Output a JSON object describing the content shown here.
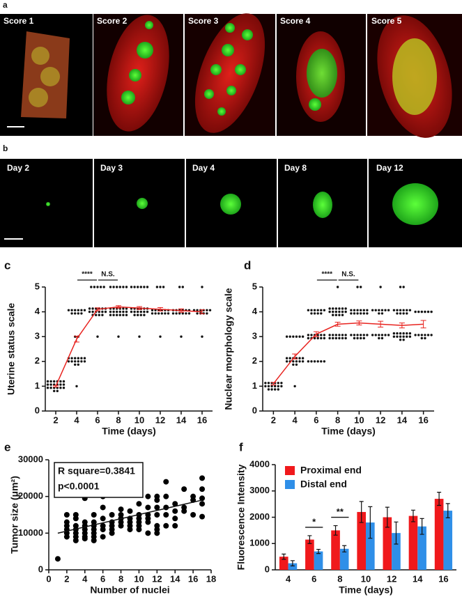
{
  "panel_a": {
    "letter": "a",
    "labels": [
      "Score 1",
      "Score 2",
      "Score 3",
      "Score 4",
      "Score 5"
    ]
  },
  "panel_b": {
    "letter": "b",
    "labels": [
      "Day 2",
      "Day 3",
      "Day 4",
      "Day 8",
      "Day 12"
    ]
  },
  "chart_data": [
    {
      "type": "dotplot",
      "letter": "c",
      "ylabel": "Uterine status scale",
      "xlabel": "Time (days)",
      "x": [
        2,
        4,
        6,
        8,
        10,
        12,
        14,
        16
      ],
      "xlim": [
        1,
        17
      ],
      "xticks": [
        2,
        4,
        6,
        8,
        10,
        12,
        14,
        16
      ],
      "ylim": [
        0,
        5
      ],
      "yticks": [
        0,
        1,
        2,
        3,
        4,
        5
      ],
      "dot_color": "#111111",
      "line_color": "#e8231f",
      "points": [
        [
          1,
          1,
          1,
          1,
          1,
          1,
          1,
          1,
          1,
          1,
          1,
          1,
          1,
          1,
          1,
          1,
          1,
          1,
          1,
          1
        ],
        [
          4,
          4,
          4,
          4,
          4,
          4,
          4,
          4,
          4,
          4,
          3,
          3,
          2,
          2,
          2,
          2,
          2,
          2,
          2,
          2,
          2,
          2,
          2,
          2,
          2,
          2,
          1
        ],
        [
          5,
          5,
          5,
          5,
          5,
          4,
          4,
          4,
          4,
          4,
          4,
          4,
          4,
          4,
          4,
          4,
          4,
          4,
          4,
          4,
          4,
          3
        ],
        [
          5,
          5,
          5,
          5,
          5,
          5,
          4,
          4,
          4,
          4,
          4,
          4,
          4,
          4,
          4,
          4,
          4,
          4,
          4,
          4,
          4,
          4,
          4,
          4,
          3
        ],
        [
          5,
          5,
          5,
          5,
          5,
          5,
          4,
          4,
          4,
          4,
          4,
          4,
          4,
          4,
          4,
          4,
          4,
          4,
          4,
          4,
          4,
          4,
          3
        ],
        [
          5,
          5,
          5,
          4,
          4,
          4,
          4,
          4,
          4,
          4,
          4,
          4,
          4,
          4,
          4,
          3
        ],
        [
          5,
          5,
          4,
          4,
          4,
          4,
          4,
          4,
          4,
          4,
          4,
          4,
          4,
          4,
          3
        ],
        [
          5,
          4,
          4,
          4,
          4,
          4,
          4,
          4,
          4,
          4,
          4,
          3
        ]
      ],
      "mean": [
        1.0,
        2.9,
        4.1,
        4.2,
        4.15,
        4.1,
        4.05,
        4.0
      ],
      "errors": [
        0.03,
        0.12,
        0.06,
        0.05,
        0.06,
        0.07,
        0.07,
        0.08
      ],
      "brackets": [
        {
          "label": "****",
          "x": [
            4,
            6
          ]
        },
        {
          "label": "N.S.",
          "x": [
            6,
            8
          ]
        }
      ]
    },
    {
      "type": "dotplot",
      "letter": "d",
      "ylabel": "Nuclear morphology scale",
      "xlabel": "Time (days)",
      "x": [
        2,
        4,
        6,
        8,
        10,
        12,
        14,
        16
      ],
      "xlim": [
        1,
        17
      ],
      "xticks": [
        2,
        4,
        6,
        8,
        10,
        12,
        14,
        16
      ],
      "ylim": [
        0,
        5
      ],
      "yticks": [
        0,
        1,
        2,
        3,
        4,
        5
      ],
      "dot_color": "#111111",
      "line_color": "#e8231f",
      "points": [
        [
          1,
          1,
          1,
          1,
          1,
          1,
          1,
          1,
          1,
          1,
          1,
          1,
          1,
          1,
          1,
          1
        ],
        [
          3,
          3,
          3,
          3,
          3,
          3,
          2,
          2,
          2,
          2,
          2,
          2,
          2,
          2,
          2,
          2,
          2,
          2,
          2,
          2,
          1
        ],
        [
          4,
          4,
          4,
          4,
          4,
          4,
          4,
          4,
          4,
          4,
          3,
          3,
          3,
          3,
          3,
          3,
          3,
          3,
          3,
          3,
          3,
          3,
          2,
          2,
          2,
          2,
          2,
          2
        ],
        [
          5,
          4,
          4,
          4,
          4,
          4,
          4,
          4,
          4,
          4,
          4,
          4,
          4,
          4,
          4,
          4,
          4,
          3,
          3,
          3,
          3,
          3,
          3,
          3,
          3,
          3,
          3,
          3,
          3
        ],
        [
          5,
          5,
          4,
          4,
          4,
          4,
          4,
          4,
          4,
          4,
          4,
          4,
          4,
          4,
          3,
          3,
          3,
          3,
          3,
          3,
          3,
          3,
          3,
          3
        ],
        [
          5,
          4,
          4,
          4,
          4,
          4,
          4,
          4,
          4,
          3,
          3,
          3,
          3,
          3,
          3,
          3,
          3
        ],
        [
          5,
          5,
          4,
          4,
          4,
          4,
          4,
          4,
          4,
          4,
          4,
          4,
          3,
          3,
          3,
          3,
          3,
          3,
          3,
          3,
          3,
          3,
          3,
          3,
          3,
          3
        ],
        [
          4,
          4,
          4,
          4,
          4,
          4,
          3,
          3,
          3,
          3,
          3,
          3,
          3,
          3
        ]
      ],
      "mean": [
        1.1,
        2.2,
        3.1,
        3.5,
        3.55,
        3.5,
        3.45,
        3.5
      ],
      "errors": [
        0.05,
        0.1,
        0.1,
        0.08,
        0.08,
        0.12,
        0.1,
        0.15
      ],
      "brackets": [
        {
          "label": "****",
          "x": [
            6,
            8
          ]
        },
        {
          "label": "N.S.",
          "x": [
            8,
            10
          ]
        }
      ]
    },
    {
      "type": "scatter",
      "letter": "e",
      "ylabel": "Tumor size (μm²)",
      "xlabel": "Number of nuclei",
      "xlim": [
        0,
        18
      ],
      "xticks": [
        0,
        2,
        4,
        6,
        8,
        10,
        12,
        14,
        16,
        18
      ],
      "ylim": [
        0,
        30000
      ],
      "yticks": [
        0,
        10000,
        20000,
        30000
      ],
      "color": "#000000",
      "annotation": [
        "R square=0.3841",
        "p<0.0001"
      ],
      "x": [
        1,
        2,
        2,
        2,
        2,
        2,
        2,
        3,
        3,
        3,
        3,
        3,
        3,
        3,
        4,
        4,
        4,
        4,
        4,
        4,
        4,
        5,
        5,
        5,
        5,
        5,
        5,
        5,
        6,
        6,
        6,
        6,
        6,
        6,
        7,
        7,
        7,
        7,
        7,
        8,
        8,
        8,
        8,
        8,
        9,
        9,
        9,
        9,
        9,
        10,
        10,
        10,
        10,
        10,
        10,
        11,
        11,
        11,
        11,
        11,
        11,
        12,
        12,
        12,
        12,
        12,
        12,
        12,
        13,
        13,
        13,
        13,
        13,
        14,
        14,
        14,
        14,
        15,
        15,
        15,
        16,
        16,
        16,
        17,
        17,
        17,
        17,
        17
      ],
      "y": [
        3000,
        11000,
        13000,
        15000,
        10000,
        9000,
        12000,
        12000,
        10000,
        14000,
        8000,
        11000,
        15000,
        9000,
        10000,
        11000,
        19500,
        9000,
        13000,
        8500,
        12000,
        9000,
        10000,
        15000,
        12000,
        13000,
        8000,
        11000,
        12000,
        17000,
        20000,
        11000,
        9000,
        14000,
        13000,
        12000,
        10000,
        15000,
        11000,
        14000,
        16500,
        13000,
        15000,
        12000,
        13000,
        14000,
        16000,
        11000,
        12000,
        14000,
        15000,
        13000,
        11000,
        18000,
        12000,
        20000,
        15000,
        17000,
        14000,
        10000,
        13000,
        12000,
        15000,
        17000,
        10000,
        19000,
        20000,
        11000,
        24000,
        15000,
        12000,
        20000,
        17000,
        16000,
        12000,
        18000,
        14000,
        17000,
        22000,
        16000,
        19000,
        20000,
        15000,
        25000,
        22000,
        18000,
        14500,
        19500
      ],
      "fit": {
        "x": [
          1,
          17
        ],
        "y": [
          10000,
          19000
        ]
      }
    },
    {
      "type": "groupedbar",
      "letter": "f",
      "ylabel": "Fluorescence Intensity",
      "xlabel": "Time (days)",
      "categories": [
        "4",
        "6",
        "8",
        "10",
        "12",
        "14",
        "16"
      ],
      "ylim": [
        0,
        4000
      ],
      "yticks": [
        0,
        1000,
        2000,
        3000,
        4000
      ],
      "series": [
        {
          "name": "Proximal end",
          "color": "#f0191c",
          "values": [
            500,
            1150,
            1500,
            2200,
            2000,
            2050,
            2700
          ],
          "errors": [
            100,
            150,
            180,
            400,
            380,
            220,
            250
          ]
        },
        {
          "name": "Distal end",
          "color": "#2f8fe8",
          "values": [
            250,
            700,
            800,
            1800,
            1400,
            1650,
            2250
          ],
          "errors": [
            100,
            80,
            120,
            600,
            420,
            300,
            270
          ]
        }
      ],
      "brackets": [
        {
          "label": "*",
          "category": 1
        },
        {
          "label": "**",
          "category": 2
        }
      ]
    }
  ]
}
